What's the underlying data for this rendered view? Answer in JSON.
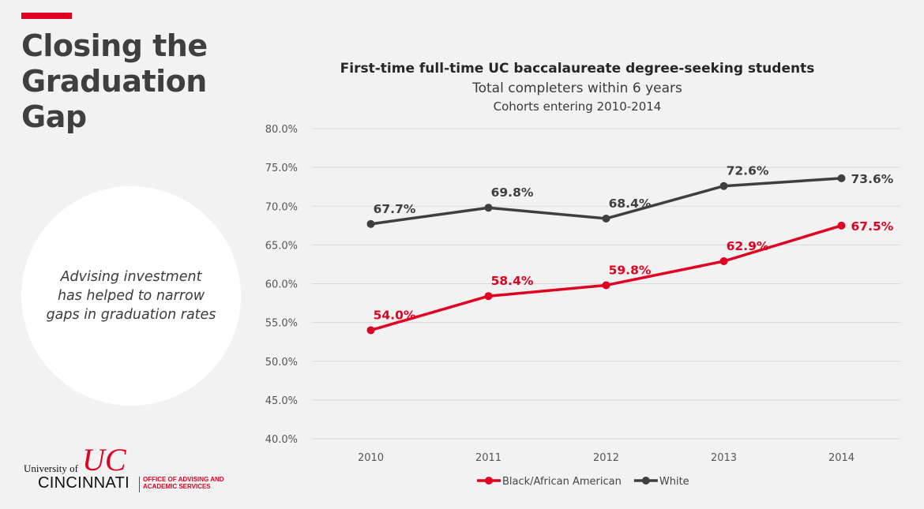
{
  "slide": {
    "title_lines": [
      "Closing the",
      "Graduation",
      "Gap"
    ],
    "callout_lines": [
      "Advising investment",
      "has helped to narrow",
      "gaps in graduation rates"
    ],
    "accent_color": "#e00122"
  },
  "logo": {
    "univ_of": "University of",
    "name": "CINCINNATI",
    "office_lines": [
      "OFFICE OF ADVISING AND",
      "ACADEMIC SERVICES"
    ],
    "mark_text": "UC"
  },
  "chart_data": {
    "type": "line",
    "title": "First-time full-time UC baccalaureate degree-seeking students",
    "subtitle": "Total completers within 6 years",
    "subtitle2": "Cohorts entering 2010-2014",
    "categories": [
      "2010",
      "2011",
      "2012",
      "2013",
      "2014"
    ],
    "ylim": [
      40,
      80
    ],
    "yticks": [
      40,
      45,
      50,
      55,
      60,
      65,
      70,
      75,
      80
    ],
    "ytick_labels": [
      "40.0%",
      "45.0%",
      "50.0%",
      "55.0%",
      "60.0%",
      "65.0%",
      "70.0%",
      "75.0%",
      "80.0%"
    ],
    "grid": true,
    "legend_position": "bottom",
    "series": [
      {
        "name": "Black/African American",
        "color": "#e00122",
        "values": [
          54.0,
          58.4,
          59.8,
          62.9,
          67.5
        ],
        "labels": [
          "54.0%",
          "58.4%",
          "59.8%",
          "62.9%",
          "67.5%"
        ]
      },
      {
        "name": "White",
        "color": "#3f3f3f",
        "values": [
          67.7,
          69.8,
          68.4,
          72.6,
          73.6
        ],
        "labels": [
          "67.7%",
          "69.8%",
          "68.4%",
          "72.6%",
          "73.6%"
        ]
      }
    ]
  }
}
